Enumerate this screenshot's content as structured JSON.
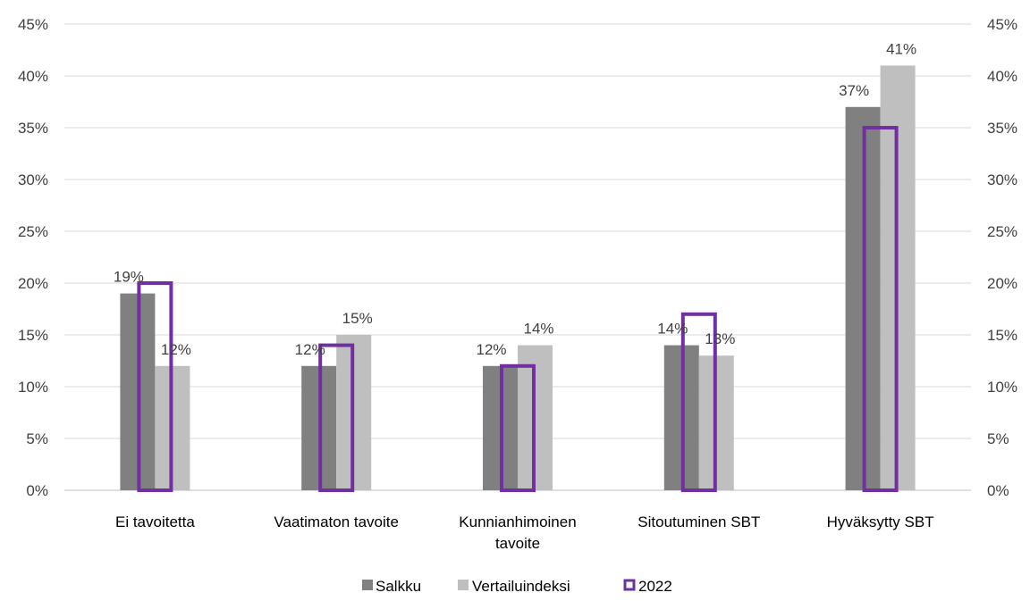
{
  "chart_data": {
    "type": "bar",
    "categories": [
      [
        "Ei tavoitetta"
      ],
      [
        "Vaatimaton tavoite"
      ],
      [
        "Kunnianhimoinen",
        "tavoite"
      ],
      [
        "Sitoutuminen SBT"
      ],
      [
        "Hyväksytty SBT"
      ]
    ],
    "series": [
      {
        "name": "Salkku",
        "values": [
          19,
          12,
          12,
          14,
          37
        ],
        "color": "#808080",
        "labels": [
          "19%",
          "12%",
          "12%",
          "14%",
          "37%"
        ]
      },
      {
        "name": "Vertailuindeksi",
        "values": [
          12,
          15,
          14,
          13,
          41
        ],
        "color": "#bfbfbf",
        "labels": [
          "12%",
          "15%",
          "14%",
          "13%",
          "41%"
        ]
      },
      {
        "name": "2022",
        "values": [
          20,
          14,
          12,
          17,
          35
        ],
        "color": "#7030a0",
        "style": "outline"
      }
    ],
    "ylim": [
      0,
      45
    ],
    "yticks": [
      "0%",
      "5%",
      "10%",
      "15%",
      "20%",
      "25%",
      "30%",
      "35%",
      "40%",
      "45%"
    ],
    "ytick_values": [
      0,
      5,
      10,
      15,
      20,
      25,
      30,
      35,
      40,
      45
    ],
    "secondary_axis": true,
    "grid": true,
    "legend": "bottom"
  }
}
